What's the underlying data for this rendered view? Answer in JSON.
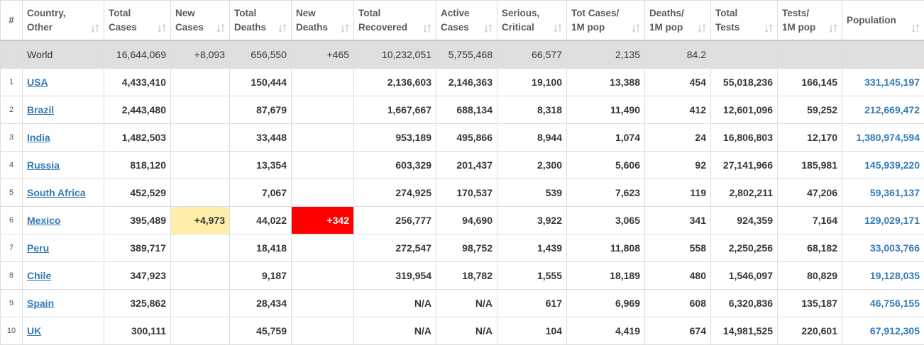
{
  "table": {
    "columns": [
      [
        "#"
      ],
      [
        "Country,",
        "Other"
      ],
      [
        "Total",
        "Cases"
      ],
      [
        "New",
        "Cases"
      ],
      [
        "Total",
        "Deaths"
      ],
      [
        "New",
        "Deaths"
      ],
      [
        "Total",
        "Recovered"
      ],
      [
        "Active",
        "Cases"
      ],
      [
        "Serious,",
        "Critical"
      ],
      [
        "Tot Cases/",
        "1M pop"
      ],
      [
        "Deaths/",
        "1M pop"
      ],
      [
        "Total",
        "Tests"
      ],
      [
        "Tests/",
        "1M pop"
      ],
      [
        "Population"
      ]
    ],
    "world": [
      null,
      "World",
      "16,644,069",
      "+8,093",
      "656,550",
      "+465",
      "10,232,051",
      "5,755,468",
      "66,577",
      "2,135",
      "84.2",
      null,
      null,
      null
    ],
    "rows": [
      {
        "cells": [
          1,
          "USA",
          "4,433,410",
          null,
          "150,444",
          null,
          "2,136,603",
          "2,146,363",
          "19,100",
          "13,388",
          454,
          "55,018,236",
          "166,145",
          "331,145,197"
        ]
      },
      {
        "cells": [
          2,
          "Brazil",
          "2,443,480",
          null,
          "87,679",
          null,
          "1,667,667",
          "688,134",
          "8,318",
          "11,490",
          412,
          "12,601,096",
          "59,252",
          "212,669,472"
        ]
      },
      {
        "cells": [
          3,
          "India",
          "1,482,503",
          null,
          "33,448",
          null,
          "953,189",
          "495,866",
          "8,944",
          "1,074",
          24,
          "16,806,803",
          "12,170",
          "1,380,974,594"
        ]
      },
      {
        "cells": [
          4,
          "Russia",
          "818,120",
          null,
          "13,354",
          null,
          "603,329",
          "201,437",
          "2,300",
          "5,606",
          92,
          "27,141,966",
          "185,981",
          "145,939,220"
        ]
      },
      {
        "cells": [
          5,
          "South Africa",
          "452,529",
          null,
          "7,067",
          null,
          "274,925",
          "170,537",
          539,
          "7,623",
          119,
          "2,802,211",
          "47,206",
          "59,361,137"
        ]
      },
      {
        "cells": [
          6,
          "Mexico",
          "395,489",
          "+4,973",
          "44,022",
          "+342",
          "256,777",
          "94,690",
          "3,922",
          "3,065",
          341,
          "924,359",
          "7,164",
          "129,029,171"
        ],
        "highlights": {
          "3": "#ffeeaa",
          "5": "#ff0000"
        }
      },
      {
        "cells": [
          7,
          "Peru",
          "389,717",
          null,
          "18,418",
          null,
          "272,547",
          "98,752",
          "1,439",
          "11,808",
          558,
          "2,250,256",
          "68,182",
          "33,003,766"
        ]
      },
      {
        "cells": [
          8,
          "Chile",
          "347,923",
          null,
          "9,187",
          null,
          "319,954",
          "18,782",
          "1,555",
          "18,189",
          480,
          "1,546,097",
          "80,829",
          "19,128,035"
        ]
      },
      {
        "cells": [
          9,
          "Spain",
          "325,862",
          null,
          "28,434",
          null,
          "N/A",
          "N/A",
          617,
          "6,969",
          608,
          "6,320,836",
          "135,187",
          "46,756,155"
        ]
      },
      {
        "cells": [
          10,
          "UK",
          "300,111",
          null,
          "45,759",
          null,
          "N/A",
          "N/A",
          104,
          "4,419",
          674,
          "14,981,525",
          "220,601",
          "67,912,305"
        ]
      }
    ]
  }
}
